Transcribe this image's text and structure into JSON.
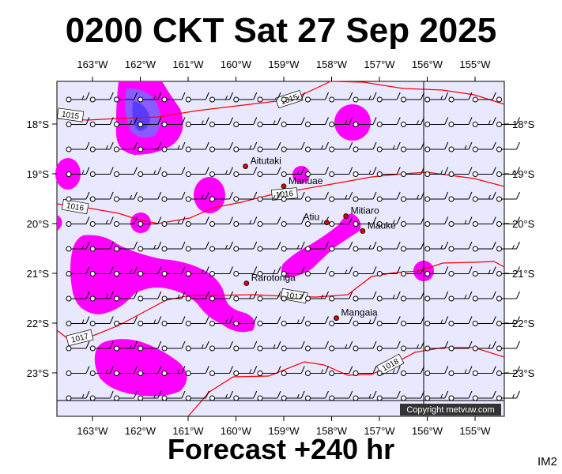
{
  "title": "0200 CKT Sat 27 Sep 2025",
  "footer": "Forecast +240 hr",
  "tag": "IM2",
  "copyright": "Copyright metvuw.com",
  "longitudes": [
    "163°W",
    "162°W",
    "161°W",
    "160°W",
    "159°W",
    "158°W",
    "157°W",
    "156°W",
    "155°W"
  ],
  "latitudes": [
    "18°S",
    "19°S",
    "20°S",
    "21°S",
    "22°S",
    "23°S"
  ],
  "places": [
    {
      "name": "Aitutaki",
      "lon": -159.8,
      "lat": -18.85
    },
    {
      "name": "Manuae",
      "lon": -159.0,
      "lat": -19.25
    },
    {
      "name": "Atiu",
      "lon": -158.1,
      "lat": -19.98
    },
    {
      "name": "Mitiaro",
      "lon": -157.7,
      "lat": -19.85
    },
    {
      "name": "Mauke",
      "lon": -157.35,
      "lat": -20.15
    },
    {
      "name": "Rarotonga",
      "lon": -159.78,
      "lat": -21.2
    },
    {
      "name": "Mangaia",
      "lon": -157.9,
      "lat": -21.9
    }
  ],
  "isobar_labels": [
    "1015",
    "1015",
    "1016",
    "1016",
    "1017",
    "1017",
    "1018"
  ],
  "colors": {
    "sea": "#e8e8ff",
    "precip_light": "#ff00ff",
    "precip_heavy": "#5a3cff",
    "isobar": "#ff0000"
  }
}
